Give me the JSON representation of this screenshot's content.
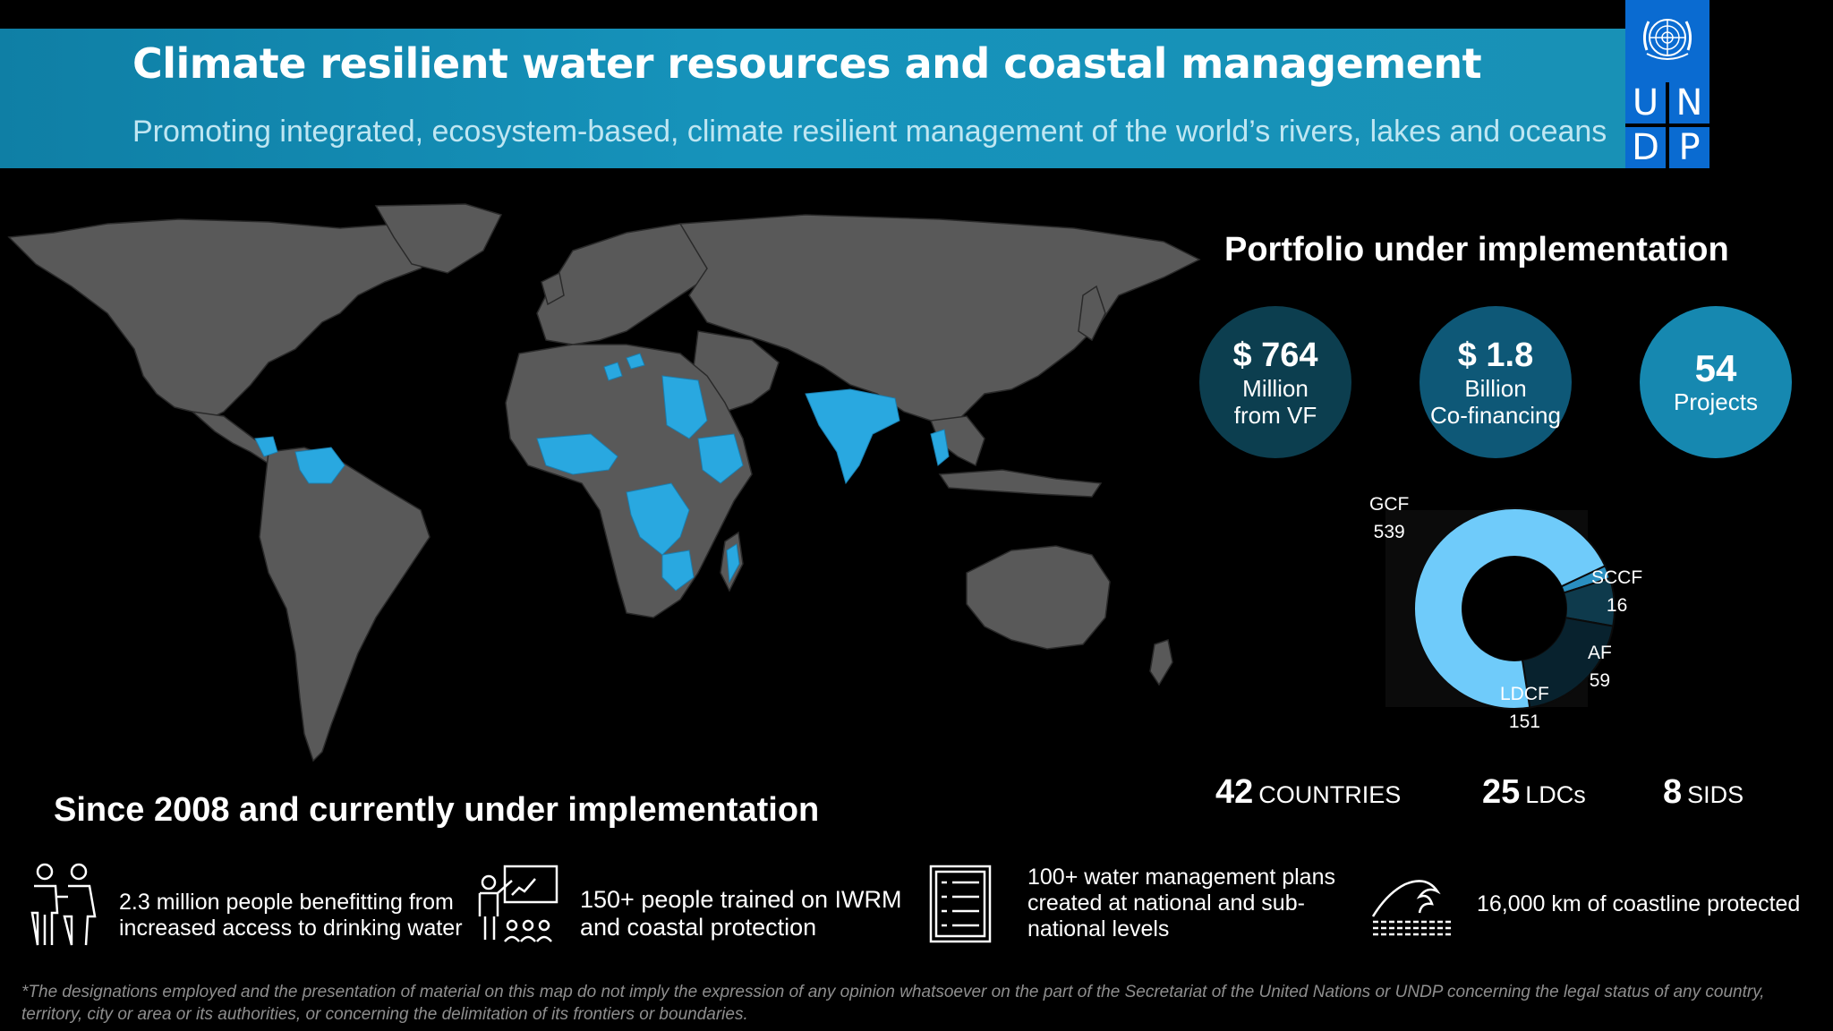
{
  "header": {
    "title": "Climate resilient water resources and coastal management",
    "subtitle": "Promoting integrated, ecosystem-based, climate resilient management of the world’s rivers, lakes and oceans"
  },
  "logo": {
    "letters": [
      "U",
      "N",
      "D",
      "P"
    ]
  },
  "map": {
    "land_color": "#595959",
    "highlight_color": "#29a8e0"
  },
  "portfolio": {
    "title": "Portfolio under implementation",
    "circles": [
      {
        "big": "$ 764",
        "line1": "Million",
        "line2": "from VF"
      },
      {
        "big": "$ 1.8",
        "line1": "Billion",
        "line2": "Co-financing"
      },
      {
        "big": "54",
        "line1": "Projects",
        "line2": ""
      }
    ]
  },
  "chart_data": {
    "type": "pie",
    "subtype": "donut",
    "categories": [
      "GCF",
      "SCCF",
      "AF",
      "LDCF"
    ],
    "values": [
      539,
      16,
      59,
      151
    ],
    "colors": [
      "#6fcbfa",
      "#2a8fc0",
      "#0e3a4c",
      "#08222e"
    ]
  },
  "counts": [
    {
      "n": "42",
      "label": "COUNTRIES"
    },
    {
      "n": "25",
      "label": "LDCs"
    },
    {
      "n": "8",
      "label": "SIDS"
    }
  ],
  "since": {
    "title": "Since 2008 and currently under implementation",
    "stats": [
      {
        "icon": "people-icon",
        "text1": "2.3 million people benefitting from",
        "text2": "increased access to drinking water",
        "text3": ""
      },
      {
        "icon": "training-icon",
        "text1": "150+ people trained on IWRM",
        "text2": "and coastal protection",
        "text3": ""
      },
      {
        "icon": "checklist-icon",
        "text1": "100+ water management plans",
        "text2": "created at national and sub-",
        "text3": "national levels"
      },
      {
        "icon": "wave-icon",
        "text1": "16,000 km of coastline protected",
        "text2": "",
        "text3": ""
      }
    ]
  },
  "disclaimer": {
    "line1": "*The designations employed and the presentation of material on this map do not imply the expression of any opinion whatsoever on the part of the Secretariat of the United Nations or UNDP concerning the legal status of any country,",
    "line2": "territory, city or area or its authorities, or concerning the delimitation of its frontiers or boundaries."
  }
}
